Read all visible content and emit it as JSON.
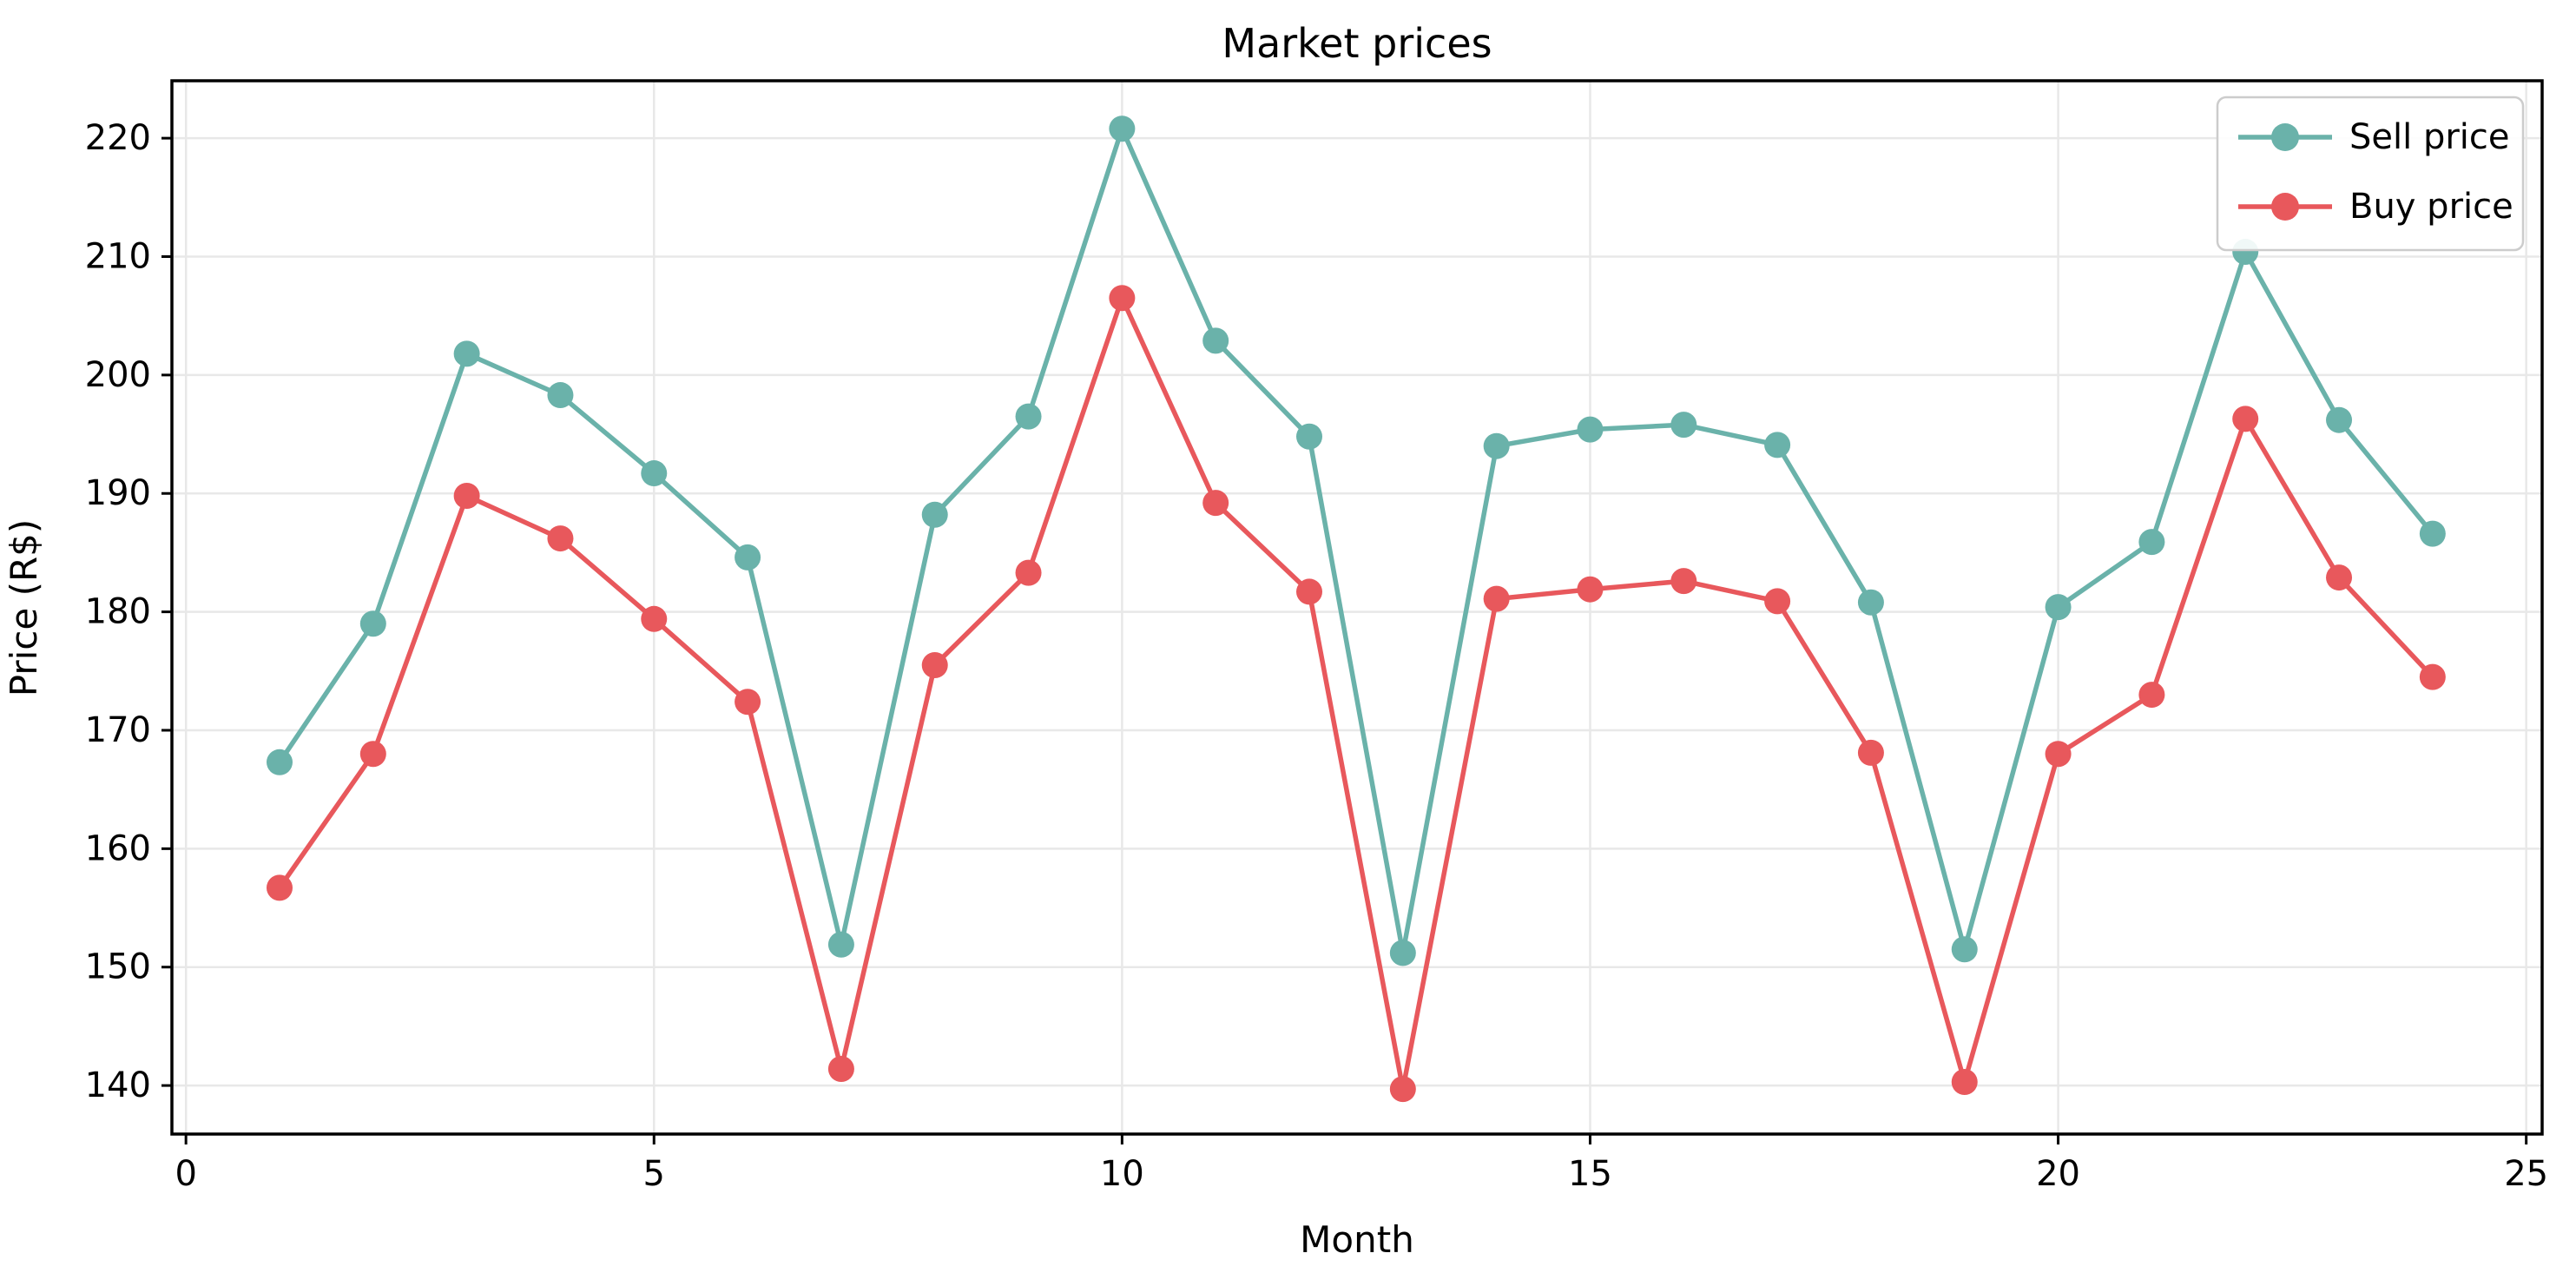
{
  "chart_data": {
    "type": "line",
    "title": "Market prices",
    "xlabel": "Month",
    "ylabel": "Price (R$)",
    "x": [
      1,
      2,
      3,
      4,
      5,
      6,
      7,
      8,
      9,
      10,
      11,
      12,
      13,
      14,
      15,
      16,
      17,
      18,
      19,
      20,
      21,
      22,
      23,
      24
    ],
    "series": [
      {
        "name": "Sell price",
        "color": "#6ab2aa",
        "values": [
          167.3,
          179.0,
          201.8,
          198.3,
          191.7,
          184.6,
          151.9,
          188.2,
          196.5,
          220.8,
          202.9,
          194.8,
          151.2,
          194.0,
          195.4,
          195.8,
          194.1,
          180.8,
          151.5,
          180.4,
          185.9,
          210.4,
          196.2,
          186.6
        ]
      },
      {
        "name": "Buy price",
        "color": "#e8585c",
        "values": [
          156.7,
          168.0,
          189.8,
          186.2,
          179.4,
          172.4,
          141.4,
          175.5,
          183.3,
          206.5,
          189.2,
          181.7,
          139.7,
          181.1,
          181.9,
          182.6,
          180.9,
          168.1,
          140.3,
          168.0,
          173.0,
          196.3,
          182.9,
          174.5
        ]
      }
    ],
    "xticks": [
      0,
      5,
      10,
      15,
      20,
      25
    ],
    "yticks": [
      140,
      150,
      160,
      170,
      180,
      190,
      200,
      210,
      220
    ],
    "xlim": [
      -0.15,
      25.17
    ],
    "ylim": [
      135.9,
      224.85
    ],
    "grid": true,
    "legend_position": "upper right",
    "grid_color": "#e8e8e8",
    "spine_color": "#000000",
    "legend_border_color": "#cccccc"
  }
}
